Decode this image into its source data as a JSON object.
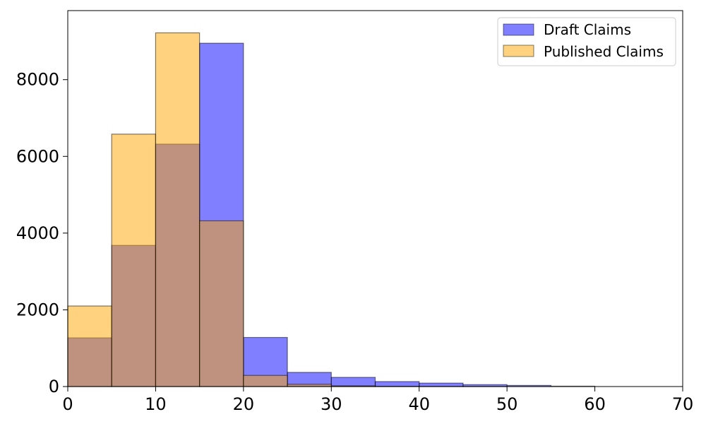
{
  "chart_data": {
    "type": "bar",
    "subtype": "overlapping-histogram",
    "title": "",
    "xlabel": "",
    "ylabel": "",
    "bin_edges": [
      0,
      5,
      10,
      15,
      20,
      25,
      30,
      35,
      40,
      45,
      50,
      55,
      60
    ],
    "xlim": [
      0,
      70
    ],
    "ylim": [
      0,
      9800
    ],
    "x_ticks": [
      "0",
      "10",
      "20",
      "30",
      "40",
      "50",
      "60",
      "70"
    ],
    "y_ticks": [
      "0",
      "2000",
      "4000",
      "6000",
      "8000"
    ],
    "grid": false,
    "legend_position": "top-right",
    "series": [
      {
        "name": "Draft Claims",
        "color": "#0000ff",
        "alpha": 0.5,
        "values": [
          1270,
          3680,
          6320,
          8950,
          1280,
          370,
          240,
          130,
          90,
          50,
          30,
          10
        ]
      },
      {
        "name": "Published Claims",
        "color": "#ffa500",
        "alpha": 0.5,
        "values": [
          2100,
          6580,
          9220,
          4320,
          290,
          60,
          20,
          5,
          2,
          1,
          0,
          0
        ]
      }
    ]
  }
}
